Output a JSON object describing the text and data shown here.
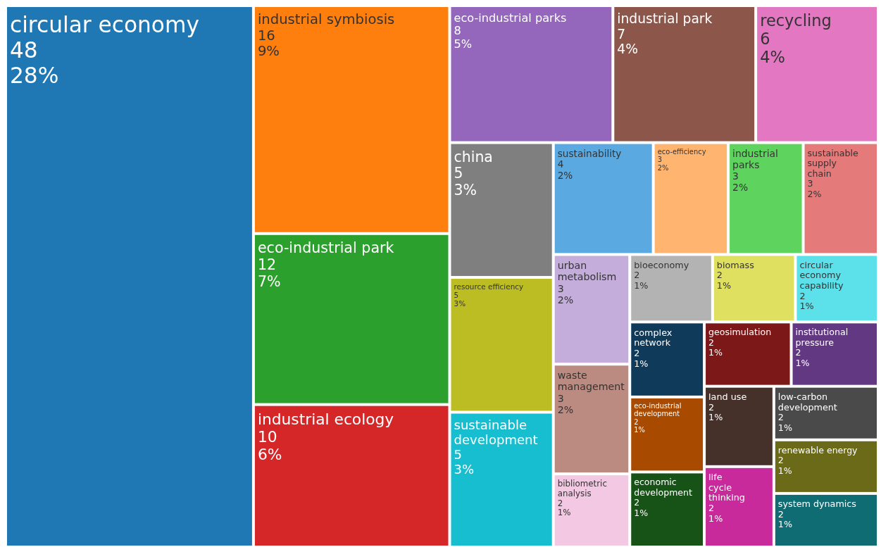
{
  "chart_data": {
    "type": "other",
    "categories": [
      "circular economy",
      "industrial symbiosis",
      "eco-industrial park",
      "industrial ecology",
      "eco-industrial parks",
      "industrial park",
      "recycling",
      "china",
      "resource efficiency",
      "sustainable development",
      "sustainability",
      "eco-efficiency",
      "industrial parks",
      "sustainable supply chain",
      "urban metabolism",
      "waste management",
      "bibliometric analysis",
      "bioeconomy",
      "biomass",
      "circular economy capability",
      "complex network",
      "eco-industrial development",
      "economic development",
      "geosimulation",
      "institutional pressure",
      "land use",
      "life cycle thinking",
      "low-carbon development",
      "renewable energy",
      "system dynamics"
    ],
    "values": [
      48,
      16,
      12,
      10,
      8,
      7,
      6,
      5,
      5,
      5,
      4,
      3,
      3,
      3,
      3,
      3,
      2,
      2,
      2,
      2,
      2,
      2,
      2,
      2,
      2,
      2,
      2,
      2,
      2,
      2
    ],
    "value_labels": [
      "48\n28%",
      "16\n9%",
      "12\n7%",
      "10\n6%",
      "8\n5%",
      "7\n4%",
      "6\n4%",
      "5\n3%",
      "5\n3%",
      "5\n3%",
      "4\n2%",
      "3\n2%",
      "3\n2%",
      "3\n2%",
      "3\n2%",
      "3\n2%",
      "2\n1%",
      "2\n1%",
      "2\n1%",
      "2\n1%",
      "2\n1%",
      "2\n1%",
      "2\n1%",
      "2\n1%",
      "2\n1%",
      "2\n1%",
      "2\n1%",
      "2\n1%",
      "2\n1%",
      "2\n1%"
    ],
    "colors": [
      "#1f77b4",
      "#ff7f0e",
      "#2ca02c",
      "#d62728",
      "#9467bd",
      "#8c564b",
      "#e377c2",
      "#7f7f7f",
      "#bcbd22",
      "#17becf",
      "#5aa9e0",
      "#ffb570",
      "#5ed35e",
      "#e57a7a",
      "#c5addb",
      "#bb8b82",
      "#f2c8e3",
      "#b3b3b3",
      "#e0e060",
      "#5ce0ea",
      "#103a5a",
      "#a84a00",
      "#175217",
      "#7d1818",
      "#633883",
      "#46302a",
      "#c82a9b",
      "#4a4a4a",
      "#6a6a18",
      "#0f6c72"
    ]
  }
}
